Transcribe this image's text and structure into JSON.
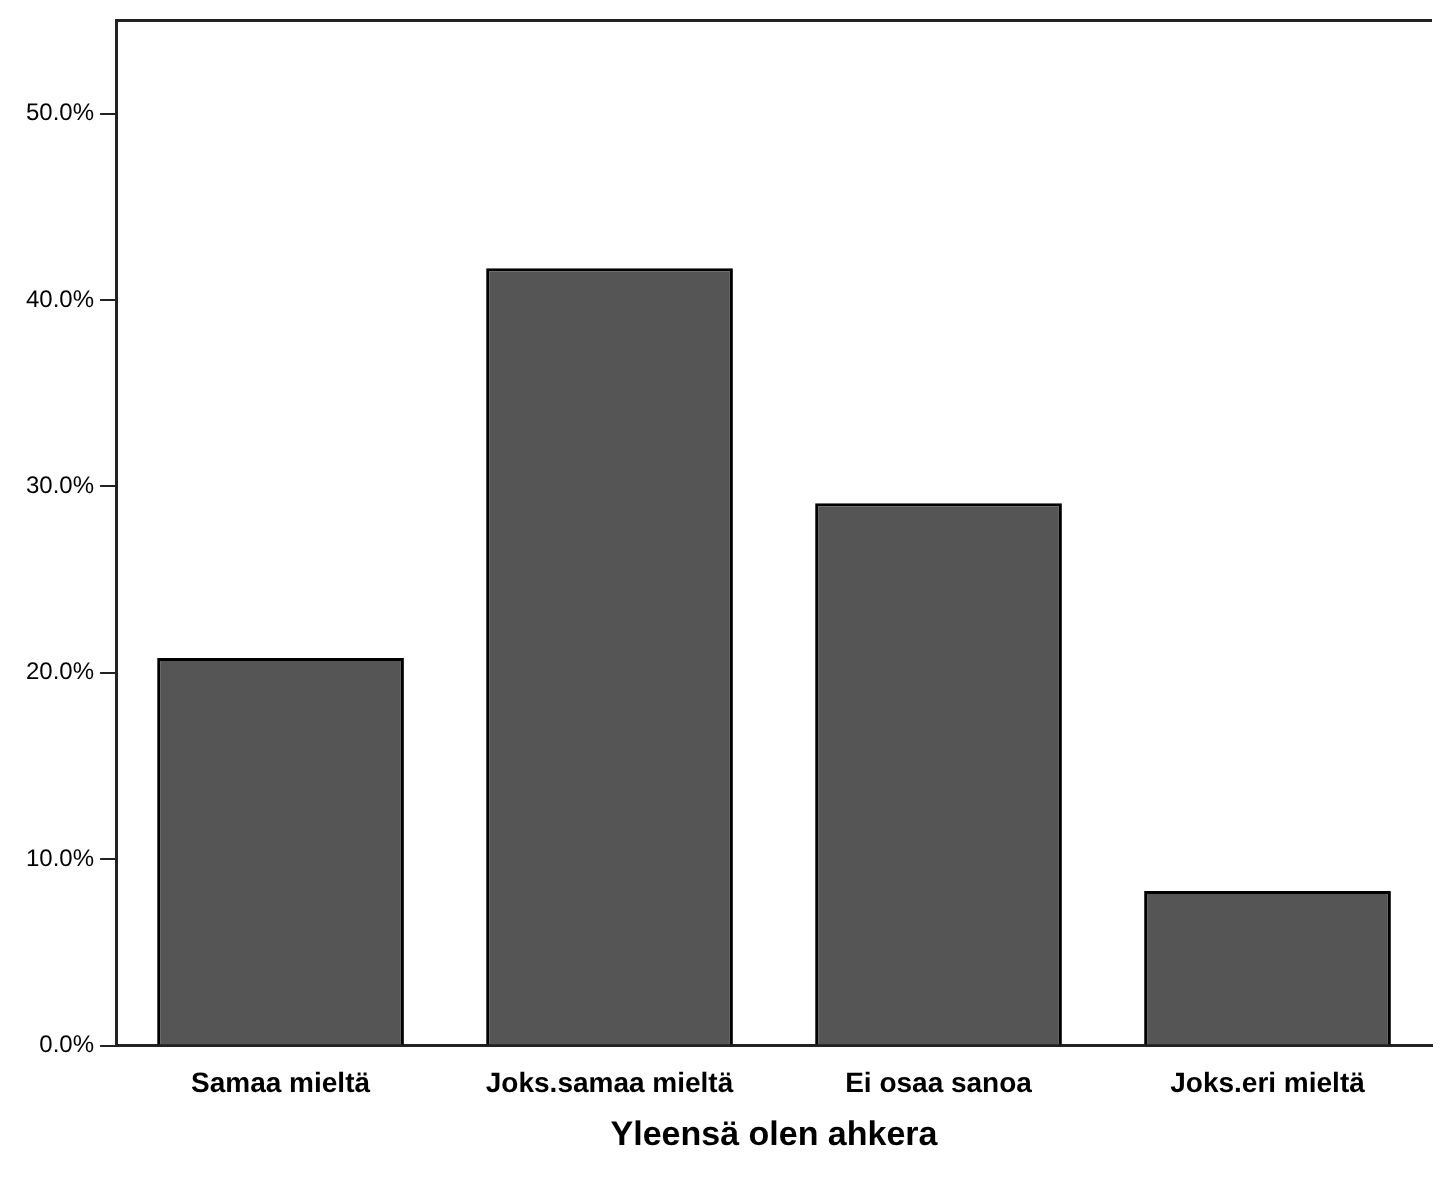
{
  "chart_data": {
    "type": "bar",
    "xlabel": "Yleensä olen ahkera",
    "categories": [
      "Samaa mieltä",
      "Joks.samaa mieltä",
      "Ei osaa sanoa",
      "Joks.eri mieltä"
    ],
    "values": [
      20.8,
      41.7,
      29.1,
      8.3
    ],
    "color": "#555555",
    "ylim": [
      0,
      55
    ],
    "yticks": [
      {
        "value": 0,
        "label": "0.0%"
      },
      {
        "value": 10,
        "label": "10.0%"
      },
      {
        "value": 20,
        "label": "20.0%"
      },
      {
        "value": 30,
        "label": "30.0%"
      },
      {
        "value": 40,
        "label": "40.0%"
      },
      {
        "value": 50,
        "label": "50.0%"
      }
    ],
    "grid": false,
    "legend": false
  }
}
